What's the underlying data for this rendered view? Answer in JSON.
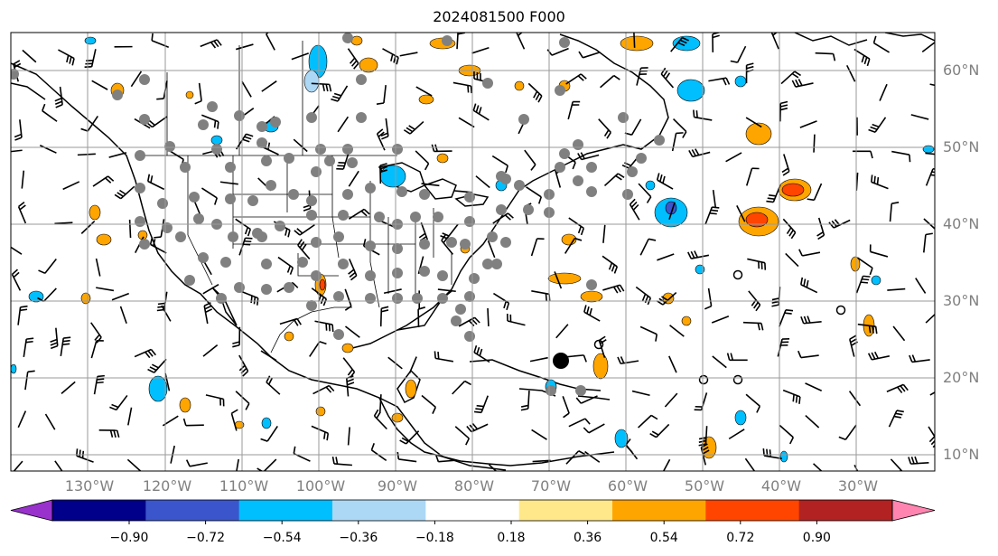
{
  "title": "2024081500 F000",
  "map": {
    "lon_labels": [
      "130°W",
      "120°W",
      "110°W",
      "100°W",
      "90°W",
      "80°W",
      "70°W",
      "60°W",
      "50°W",
      "40°W",
      "30°W"
    ],
    "lat_labels": [
      "60°N",
      "50°N",
      "40°N",
      "30°N",
      "20°N",
      "10°N"
    ]
  },
  "colorbar": {
    "ticks": [
      "−0.90",
      "−0.72",
      "−0.54",
      "−0.36",
      "−0.18",
      "0.18",
      "0.36",
      "0.54",
      "0.72",
      "0.90"
    ],
    "colors": [
      "#9932cc",
      "#00008b",
      "#3b56cc",
      "#00bfff",
      "#add8f5",
      "#ffffff",
      "#ffe88a",
      "#ffa500",
      "#ff4500",
      "#b22222",
      "#ff85b0"
    ]
  },
  "colors": {
    "grid": "#9a9a9a",
    "coast": "#000000",
    "station": "#808080",
    "label": "#808080"
  }
}
